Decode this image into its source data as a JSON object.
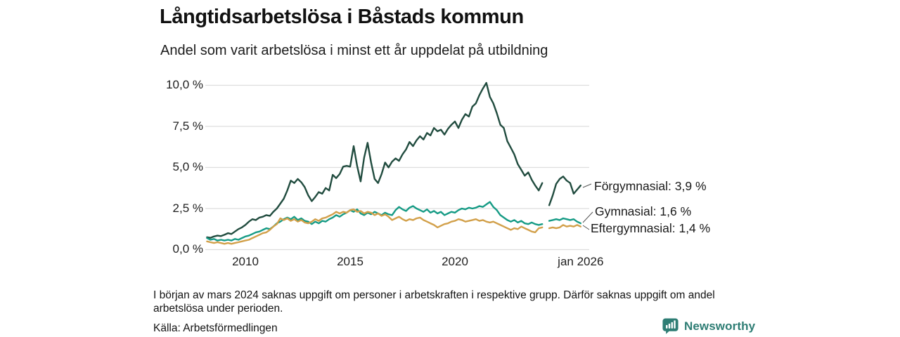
{
  "chart_data": {
    "type": "line",
    "title": "Långtidsarbetslösa i Båstads kommun",
    "subtitle": "Andel som varit arbetslösa i minst ett år uppdelat på utbildning",
    "x_unit": "decimal_year",
    "x_start": 2008.1667,
    "x_step": 0.16667,
    "ylim": [
      0,
      10.5
    ],
    "grid": "horizontal",
    "legend_position": "right-end-labels",
    "yticks": [
      {
        "v": 0,
        "label": "0,0 %"
      },
      {
        "v": 2.5,
        "label": "2,5 %"
      },
      {
        "v": 5,
        "label": "5,0 %"
      },
      {
        "v": 7.5,
        "label": "7,5 %"
      },
      {
        "v": 10,
        "label": "10,0 %"
      }
    ],
    "xticks": [
      {
        "v": 2010,
        "label": "2010"
      },
      {
        "v": 2015,
        "label": "2015"
      },
      {
        "v": 2020,
        "label": "2020"
      },
      {
        "v": 2026,
        "label": "jan 2026"
      }
    ],
    "series": [
      {
        "name": "Förgymnasial",
        "color": "#214C3F",
        "end_value": 3.9,
        "end_label": "Förgymnasial: 3,9 %",
        "values": [
          0.75,
          0.72,
          0.8,
          0.85,
          0.82,
          0.9,
          1.0,
          0.95,
          1.1,
          1.25,
          1.35,
          1.5,
          1.7,
          1.85,
          1.8,
          1.95,
          2.0,
          2.1,
          2.05,
          2.3,
          2.5,
          2.8,
          3.1,
          3.6,
          4.2,
          4.05,
          4.3,
          4.1,
          3.8,
          3.3,
          2.95,
          3.2,
          3.5,
          3.4,
          3.75,
          3.6,
          4.55,
          4.35,
          4.6,
          5.05,
          5.1,
          5.05,
          6.3,
          5.1,
          4.15,
          5.6,
          6.5,
          5.3,
          4.3,
          4.05,
          4.6,
          5.3,
          5.0,
          5.35,
          5.55,
          5.4,
          5.8,
          6.1,
          6.55,
          6.3,
          6.65,
          6.9,
          6.7,
          7.1,
          6.95,
          7.4,
          7.2,
          7.3,
          7.0,
          7.35,
          7.6,
          7.8,
          7.4,
          7.9,
          8.25,
          8.1,
          8.7,
          8.9,
          9.4,
          9.8,
          10.15,
          9.3,
          8.9,
          8.3,
          7.6,
          7.4,
          6.6,
          6.2,
          5.8,
          5.2,
          4.85,
          4.5,
          4.7,
          4.25,
          3.9,
          3.6,
          4.05,
          null,
          2.7,
          3.3,
          4.0,
          4.3,
          4.45,
          4.2,
          4.05,
          3.4,
          3.65,
          3.9
        ]
      },
      {
        "name": "Gymnasial",
        "color": "#169B85",
        "end_value": 1.6,
        "end_label": "Gymnasial: 1,6 %",
        "values": [
          0.7,
          0.6,
          0.65,
          0.55,
          0.6,
          0.55,
          0.6,
          0.55,
          0.65,
          0.6,
          0.7,
          0.8,
          0.85,
          0.95,
          1.05,
          1.1,
          1.2,
          1.3,
          1.25,
          1.4,
          1.6,
          1.7,
          1.85,
          1.95,
          1.85,
          2.0,
          1.8,
          1.9,
          1.75,
          1.7,
          1.55,
          1.7,
          1.6,
          1.75,
          1.7,
          1.85,
          1.95,
          2.1,
          2.0,
          2.15,
          2.25,
          2.4,
          2.3,
          2.45,
          2.2,
          2.1,
          2.25,
          2.15,
          2.3,
          2.2,
          2.1,
          2.25,
          2.15,
          2.1,
          2.4,
          2.6,
          2.45,
          2.35,
          2.55,
          2.65,
          2.5,
          2.4,
          2.3,
          2.45,
          2.25,
          2.35,
          2.2,
          2.3,
          2.1,
          2.2,
          2.3,
          2.25,
          2.4,
          2.5,
          2.45,
          2.55,
          2.5,
          2.55,
          2.65,
          2.6,
          2.75,
          2.9,
          2.6,
          2.4,
          2.1,
          1.95,
          1.8,
          1.7,
          1.8,
          1.65,
          1.75,
          1.6,
          1.55,
          1.65,
          1.55,
          1.5,
          1.55,
          null,
          1.75,
          1.8,
          1.85,
          1.8,
          1.9,
          1.85,
          1.8,
          1.85,
          1.7,
          1.6
        ]
      },
      {
        "name": "Eftergymnasial",
        "color": "#D2A04A",
        "end_value": 1.4,
        "end_label": "Eftergymnasial: 1,4 %",
        "values": [
          0.5,
          0.45,
          0.4,
          0.45,
          0.4,
          0.35,
          0.4,
          0.35,
          0.4,
          0.45,
          0.5,
          0.55,
          0.6,
          0.7,
          0.8,
          0.9,
          1.0,
          1.05,
          1.2,
          1.4,
          1.55,
          1.9,
          1.8,
          1.9,
          1.75,
          1.85,
          1.7,
          1.8,
          1.65,
          1.6,
          1.7,
          1.85,
          1.75,
          1.9,
          1.95,
          2.05,
          2.15,
          2.3,
          2.2,
          2.3,
          2.25,
          2.4,
          2.45,
          2.3,
          2.35,
          2.2,
          2.3,
          2.25,
          2.1,
          2.2,
          2.05,
          2.15,
          2.0,
          1.8,
          1.9,
          2.0,
          1.85,
          1.75,
          1.85,
          1.8,
          1.9,
          1.95,
          1.8,
          1.7,
          1.6,
          1.5,
          1.35,
          1.45,
          1.55,
          1.6,
          1.7,
          1.75,
          1.85,
          1.8,
          1.7,
          1.75,
          1.8,
          1.85,
          1.75,
          1.8,
          1.7,
          1.65,
          1.7,
          1.6,
          1.5,
          1.4,
          1.3,
          1.2,
          1.3,
          1.25,
          1.4,
          1.3,
          1.2,
          1.1,
          1.05,
          1.3,
          1.35,
          null,
          1.3,
          1.35,
          1.3,
          1.35,
          1.5,
          1.4,
          1.45,
          1.4,
          1.5,
          1.4
        ]
      }
    ]
  },
  "notes": {
    "footnote": "I början av mars 2024 saknas uppgift om personer i arbetskraften i respektive grupp. Därför saknas uppgift om andel arbetslösa under perioden.",
    "source": "Källa: Arbetsförmedlingen"
  },
  "branding": {
    "name": "Newsworthy",
    "color": "#2E7D74"
  },
  "style": {
    "gridline_color": "#DDDDDD",
    "connector_color": "#555555"
  }
}
